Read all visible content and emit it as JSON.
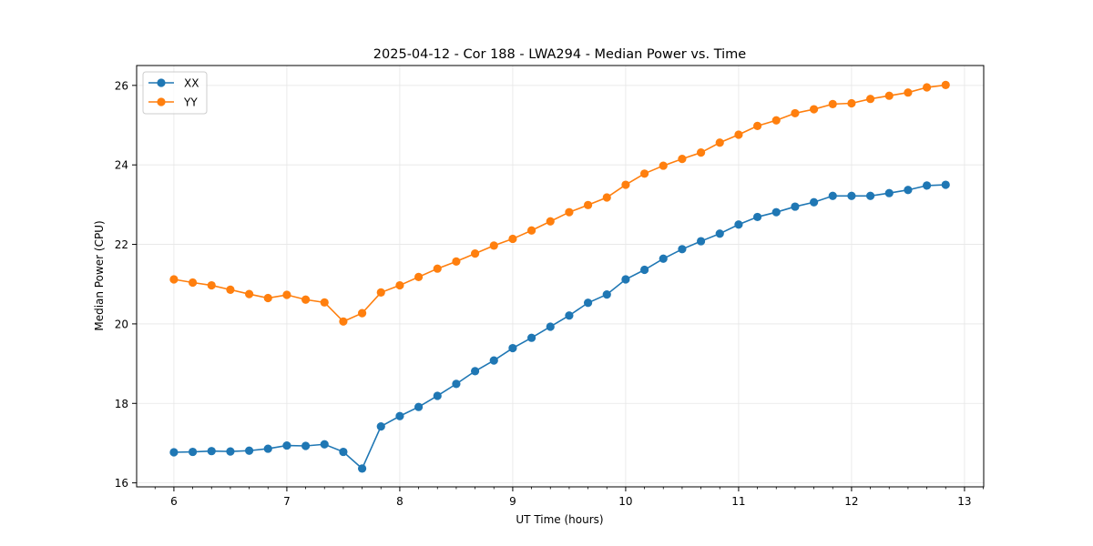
{
  "chart_data": {
    "type": "line",
    "title": "2025-04-12 - Cor 188 - LWA294 - Median Power vs. Time",
    "xlabel": "UT Time (hours)",
    "ylabel": "Median Power (CPU)",
    "xlim": [
      5.67,
      13.17
    ],
    "ylim": [
      15.9,
      26.5
    ],
    "xticks": [
      6,
      7,
      8,
      9,
      10,
      11,
      12,
      13
    ],
    "yticks": [
      16,
      18,
      20,
      22,
      24,
      26
    ],
    "grid": true,
    "legend_position": "top-left",
    "x": [
      6.0,
      6.1667,
      6.3333,
      6.5,
      6.6667,
      6.8333,
      7.0,
      7.1667,
      7.3333,
      7.5,
      7.6667,
      7.8333,
      8.0,
      8.1667,
      8.3333,
      8.5,
      8.6667,
      8.8333,
      9.0,
      9.1667,
      9.3333,
      9.5,
      9.6667,
      9.8333,
      10.0,
      10.1667,
      10.3333,
      10.5,
      10.6667,
      10.8333,
      11.0,
      11.1667,
      11.3333,
      11.5,
      11.6667,
      11.8333,
      12.0,
      12.1667,
      12.3333,
      12.5,
      12.6667,
      12.8333
    ],
    "series": [
      {
        "name": "XX",
        "color": "#1f77b4",
        "values": [
          16.77,
          16.78,
          16.8,
          16.79,
          16.81,
          16.86,
          16.94,
          16.93,
          16.97,
          16.78,
          16.36,
          17.42,
          17.68,
          17.91,
          18.19,
          18.49,
          18.81,
          19.08,
          19.39,
          19.65,
          19.93,
          20.21,
          20.53,
          20.74,
          21.12,
          21.36,
          21.64,
          21.88,
          22.08,
          22.27,
          22.5,
          22.69,
          22.81,
          22.95,
          23.06,
          23.22,
          23.22,
          23.22,
          23.29,
          23.37,
          23.48,
          23.5
        ]
      },
      {
        "name": "YY",
        "color": "#ff7f0e",
        "values": [
          21.12,
          21.04,
          20.97,
          20.86,
          20.75,
          20.65,
          20.73,
          20.61,
          20.54,
          20.06,
          20.27,
          20.79,
          20.97,
          21.18,
          21.39,
          21.57,
          21.77,
          21.97,
          22.14,
          22.35,
          22.58,
          22.81,
          22.99,
          23.18,
          23.5,
          23.78,
          23.98,
          24.15,
          24.31,
          24.56,
          24.76,
          24.98,
          25.12,
          25.3,
          25.4,
          25.53,
          25.55,
          25.66,
          25.74,
          25.82,
          25.95,
          26.01
        ]
      }
    ]
  }
}
